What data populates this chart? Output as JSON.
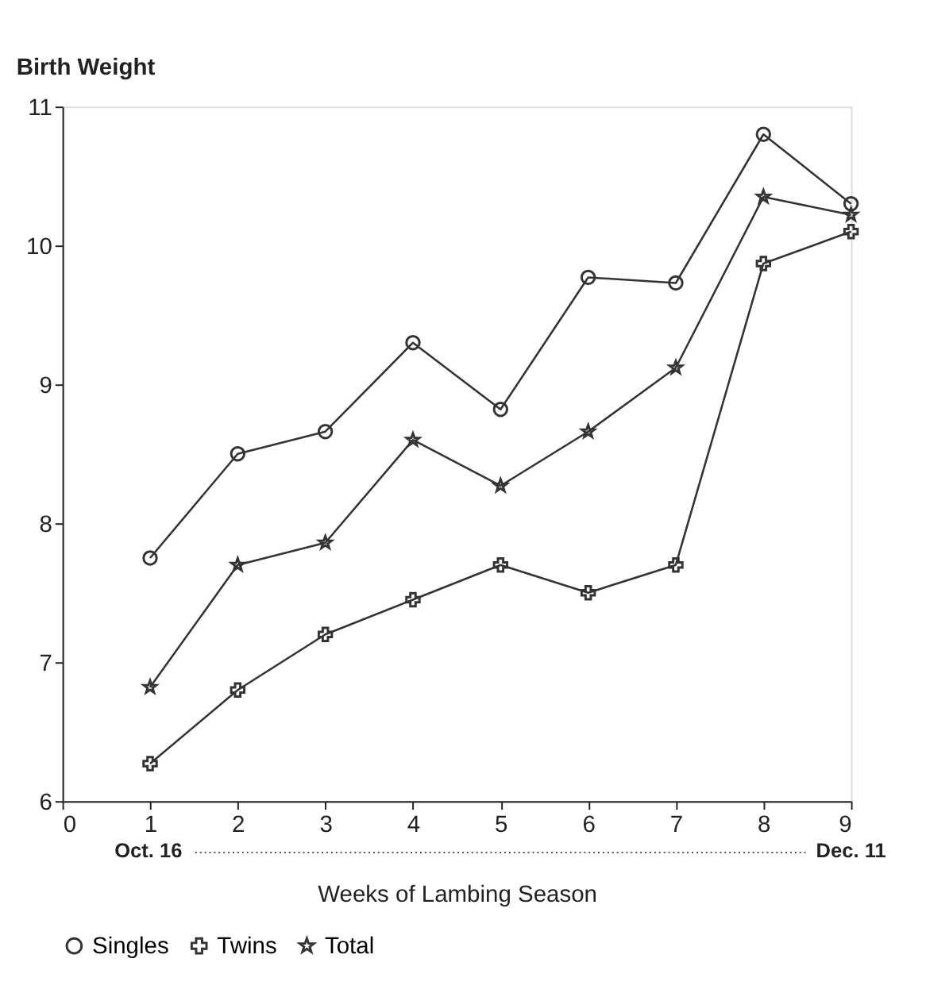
{
  "chart_data": {
    "type": "line",
    "ylabel": "Birth Weight",
    "xlabel": "Weeks of Lambing Season",
    "x": [
      1,
      2,
      3,
      4,
      5,
      6,
      7,
      8,
      9
    ],
    "series": [
      {
        "name": "Singles",
        "color": "#333333",
        "marker": "circle",
        "values": [
          7.75,
          8.5,
          8.66,
          9.3,
          8.82,
          9.77,
          9.73,
          10.8,
          10.3
        ]
      },
      {
        "name": "Twins",
        "color": "#333333",
        "marker": "cross",
        "values": [
          6.27,
          6.8,
          7.2,
          7.45,
          7.7,
          7.5,
          7.7,
          9.87,
          10.1
        ]
      },
      {
        "name": "Total",
        "color": "#333333",
        "marker": "star",
        "values": [
          6.82,
          7.7,
          7.86,
          8.6,
          8.27,
          8.66,
          9.12,
          10.35,
          10.22
        ]
      }
    ],
    "xlim": [
      0,
      9
    ],
    "xticks": [
      0,
      1,
      2,
      3,
      4,
      5,
      6,
      7,
      8,
      9
    ],
    "ylim": [
      6,
      11
    ],
    "yticks": [
      6,
      7,
      8,
      9,
      10,
      11
    ],
    "annotations": [
      "Oct. 16",
      "Dec. 11"
    ],
    "grid": false,
    "legend": "bottom",
    "line_style": "solid"
  }
}
